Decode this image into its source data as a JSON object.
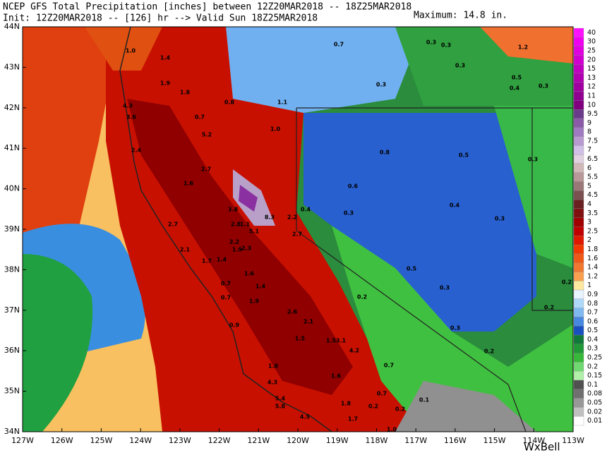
{
  "header": {
    "title": "NCEP GFS Total Precipitation [inches] between 12Z20MAR2018 -- 18Z25MAR2018",
    "init": "Init: 12Z20MAR2018 -- [126] hr --> Valid Sun 18Z25MAR2018",
    "maximum": "Maximum: 14.8 in."
  },
  "lat_labels": [
    "44N",
    "43N",
    "42N",
    "41N",
    "40N",
    "39N",
    "38N",
    "37N",
    "36N",
    "35N",
    "34N"
  ],
  "lon_labels": [
    "127W",
    "126W",
    "125W",
    "124W",
    "123W",
    "122W",
    "121W",
    "120W",
    "119W",
    "118W",
    "117W",
    "116W",
    "115W",
    "114W",
    "113W"
  ],
  "colorbar": {
    "labels": [
      40,
      30,
      25,
      20,
      15,
      13,
      12,
      11,
      10,
      9.5,
      9,
      8,
      7.5,
      7,
      6.5,
      6,
      5.5,
      5,
      4.5,
      4,
      3.5,
      3,
      2.5,
      2,
      1.8,
      1.6,
      1.4,
      1.2,
      1,
      0.9,
      0.8,
      0.7,
      0.6,
      0.5,
      0.4,
      0.3,
      0.25,
      0.2,
      0.15,
      0.1,
      0.08,
      0.05,
      0.02,
      0.01
    ],
    "colors": [
      "#ff10ff",
      "#f000f0",
      "#e000e0",
      "#d000d0",
      "#c000c0",
      "#b000b0",
      "#a000a0",
      "#900090",
      "#800080",
      "#6a3a8a",
      "#8a5aa8",
      "#a07ac0",
      "#b89ad0",
      "#d0c0e8",
      "#e0d0e0",
      "#d0b8b8",
      "#b89898",
      "#9a7878",
      "#7a5050",
      "#6a2020",
      "#801010",
      "#a00000",
      "#c00000",
      "#e01800",
      "#f03800",
      "#f05818",
      "#f07830",
      "#f8a050",
      "#ffe8a0",
      "#e8f4ff",
      "#b0d8f8",
      "#80b8f0",
      "#4888e0",
      "#1850c0",
      "#107838",
      "#209838",
      "#38b838",
      "#70d870",
      "#b0f0a8",
      "#505050",
      "#707070",
      "#989898",
      "#c0c0c0",
      "#ffffff"
    ]
  },
  "map_labels": [
    "1.0",
    "1.4",
    "0.7",
    "0.3",
    "0.3",
    "1.2",
    "0.3",
    "0.5",
    "0.4",
    "0.3",
    "1.9",
    "1.8",
    "0.3",
    "4.3",
    "0.8",
    "1.1",
    "3.6",
    "0.7",
    "1.0",
    "5.2",
    "2.4",
    "0.8",
    "0.5",
    "0.3",
    "2.7",
    "1.6",
    "0.6",
    "3.8",
    "0.4",
    "0.3",
    "0.4",
    "8.3",
    "2.2",
    "0.3",
    "2.7",
    "2.8",
    "1.1",
    "5.1",
    "2.7",
    "2.2",
    "1.9",
    "2.3",
    "2.1",
    "1.7",
    "1.4",
    "0.5",
    "1.6",
    "1.4",
    "0.3",
    "0.2",
    "0.7",
    "0.7",
    "1.9",
    "2.6",
    "0.2",
    "0.2",
    "0.9",
    "2.1",
    "0.3",
    "1.5",
    "1.5",
    "3.1",
    "4.2",
    "0.2",
    "0.7",
    "1.8",
    "1.6",
    "4.3",
    "5.4",
    "0.7",
    "0.1",
    "5.8",
    "1.8",
    "0.2",
    "0.2",
    "4.5",
    "1.7",
    "1.0"
  ],
  "logo": "WxBell"
}
